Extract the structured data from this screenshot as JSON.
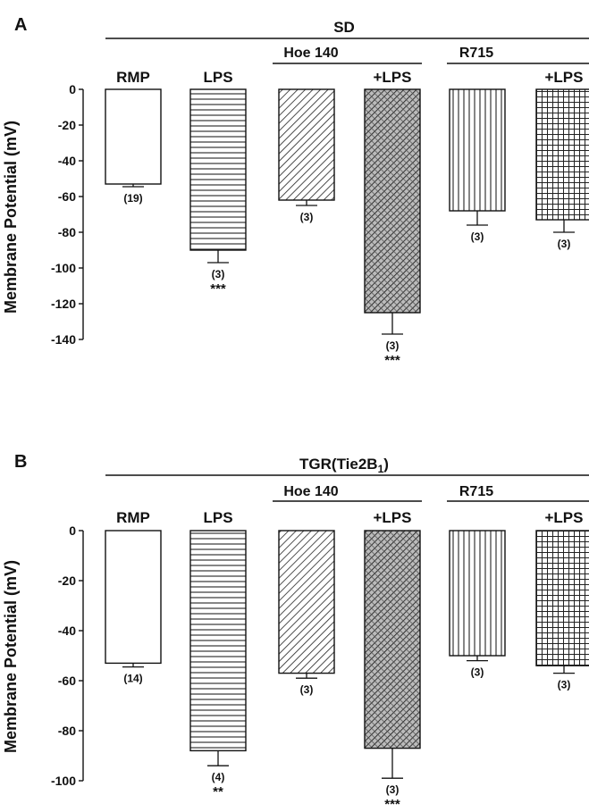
{
  "chart_data": [
    {
      "type": "bar",
      "panel_label": "A",
      "strain_label": "SD",
      "group_labels": [
        "Hoe 140",
        "R715"
      ],
      "ylabel": "Membrane Potential (mV)",
      "ylim": [
        -140,
        0
      ],
      "yticks": [
        0,
        -20,
        -40,
        -60,
        -80,
        -100,
        -120,
        -140
      ],
      "categories": [
        "RMP",
        "LPS",
        "Hoe 140",
        "+LPS",
        "R715",
        "+LPS"
      ],
      "bar_labels": [
        "RMP",
        "LPS",
        "",
        "+LPS",
        "",
        "+LPS"
      ],
      "patterns": [
        "none",
        "horizontal",
        "diagonal",
        "crosshatch-diagonal",
        "vertical",
        "grid"
      ],
      "values": [
        -53,
        -90,
        -62,
        -125,
        -68,
        -73
      ],
      "errors": [
        1.5,
        7,
        3,
        12,
        8,
        7
      ],
      "n": [
        "(19)",
        "(3)",
        "(3)",
        "(3)",
        "(3)",
        "(3)"
      ],
      "significance": [
        "",
        "***",
        "",
        "***",
        "",
        ""
      ]
    },
    {
      "type": "bar",
      "panel_label": "B",
      "strain_label": "TGR(Tie2B1)",
      "strain_label_main": "TGR(Tie2B",
      "strain_label_sub": "1",
      "strain_label_end": ")",
      "group_labels": [
        "Hoe 140",
        "R715"
      ],
      "ylabel": "Membrane Potential (mV)",
      "ylim": [
        -100,
        0
      ],
      "yticks": [
        0,
        -20,
        -40,
        -60,
        -80,
        -100
      ],
      "categories": [
        "RMP",
        "LPS",
        "Hoe 140",
        "+LPS",
        "R715",
        "+LPS"
      ],
      "bar_labels": [
        "RMP",
        "LPS",
        "",
        "+LPS",
        "",
        "+LPS"
      ],
      "patterns": [
        "none",
        "horizontal",
        "diagonal",
        "crosshatch-diagonal",
        "vertical",
        "grid"
      ],
      "values": [
        -53,
        -88,
        -57,
        -87,
        -50,
        -54
      ],
      "errors": [
        1.5,
        6,
        2,
        12,
        2,
        3
      ],
      "n": [
        "(14)",
        "(4)",
        "(3)",
        "(3)",
        "(3)",
        "(3)"
      ],
      "significance": [
        "",
        "**",
        "",
        "***",
        "",
        ""
      ]
    }
  ]
}
